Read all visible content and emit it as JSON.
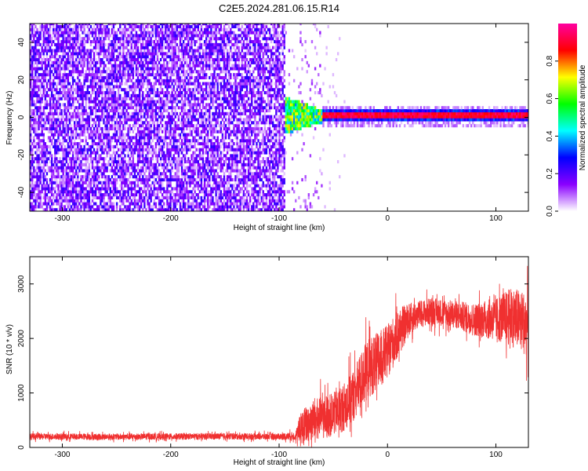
{
  "title": "C2E5.2024.281.06.15.R14",
  "chart_data": [
    {
      "type": "heatmap",
      "xlabel": "Height of straight line (km)",
      "ylabel": "Frequency (Hz)",
      "xlim": [
        -330,
        130
      ],
      "ylim": [
        -50,
        50
      ],
      "x_ticks": [
        "-300",
        "-200",
        "-100",
        "0",
        "100"
      ],
      "x_tick_values": [
        -300,
        -200,
        -100,
        0,
        100
      ],
      "y_ticks": [
        "-40",
        "-20",
        "0",
        "20",
        "40"
      ],
      "y_tick_values": [
        -40,
        -20,
        0,
        20,
        40
      ],
      "colorbar": {
        "label": "Normalized spectral amplitude",
        "range": [
          0,
          1
        ],
        "ticks": [
          "0.0",
          "0.2",
          "0.4",
          "0.6",
          "0.8"
        ],
        "tick_values": [
          0.0,
          0.2,
          0.4,
          0.6,
          0.8
        ],
        "colormap": [
          "#ffffff",
          "#8a00ff",
          "#0000ff",
          "#00ffff",
          "#00ff00",
          "#ffff00",
          "#ff0000",
          "#ff00a0"
        ]
      },
      "regions": [
        {
          "x_range": [
            -330,
            -95
          ],
          "freq_range": [
            -50,
            50
          ],
          "description_level": 0.15,
          "pattern": "broadband noise"
        },
        {
          "x_range": [
            -95,
            -60
          ],
          "freq_range": [
            -10,
            10
          ],
          "description_level": 0.5,
          "pattern": "onset band"
        },
        {
          "x_range": [
            -60,
            130
          ],
          "center_freq": 1,
          "bandwidth": 4,
          "peak_level": 0.95,
          "pattern": "narrow carrier"
        }
      ]
    },
    {
      "type": "line",
      "xlabel": "Height of straight line (km)",
      "ylabel": "SNR (10 * v/v)",
      "xlim": [
        -330,
        130
      ],
      "ylim": [
        0,
        3500
      ],
      "x_ticks": [
        "-300",
        "-200",
        "-100",
        "0",
        "100"
      ],
      "x_tick_values": [
        -300,
        -200,
        -100,
        0,
        100
      ],
      "y_ticks": [
        "0",
        "1000",
        "2000",
        "3000"
      ],
      "y_tick_values": [
        0,
        1000,
        2000,
        3000
      ],
      "color": "#f03030",
      "series": [
        {
          "x": [
            -330,
            -300,
            -250,
            -200,
            -150,
            -100,
            -85,
            -80,
            -70,
            -60,
            -50,
            -40,
            -30,
            -20,
            -15,
            -10,
            0,
            10,
            20,
            30,
            40,
            60,
            80,
            100,
            115,
            130
          ],
          "y": [
            200,
            200,
            195,
            200,
            205,
            200,
            210,
            350,
            500,
            550,
            600,
            750,
            1000,
            1400,
            1500,
            1550,
            1750,
            2100,
            2350,
            2450,
            2500,
            2450,
            2350,
            2350,
            2400,
            2250
          ],
          "noise": [
            60,
            60,
            60,
            60,
            60,
            60,
            80,
            300,
            400,
            400,
            400,
            450,
            500,
            550,
            550,
            550,
            500,
            450,
            300,
            250,
            250,
            250,
            300,
            400,
            550,
            600
          ]
        }
      ]
    }
  ]
}
